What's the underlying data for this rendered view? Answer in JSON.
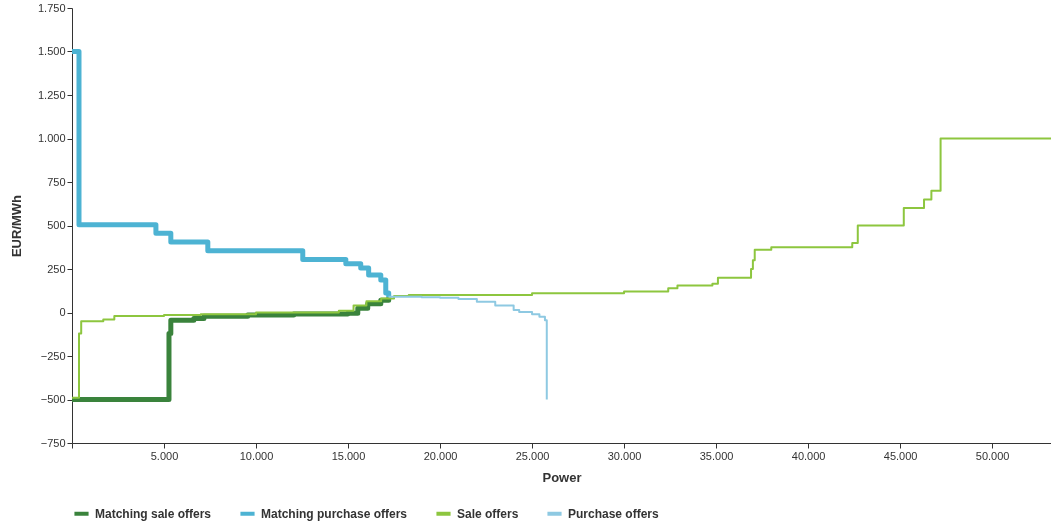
{
  "chart_data": {
    "type": "step",
    "xlabel": "Power",
    "ylabel": "EUR/MWh",
    "xlim": [
      0,
      53200
    ],
    "ylim": [
      -750,
      1750
    ],
    "xticks": [
      {
        "value": 0,
        "label": null
      },
      {
        "value": 5000,
        "label": "5.000"
      },
      {
        "value": 10000,
        "label": "10.000"
      },
      {
        "value": 15000,
        "label": "15.000"
      },
      {
        "value": 20000,
        "label": "20.000"
      },
      {
        "value": 25000,
        "label": "25.000"
      },
      {
        "value": 30000,
        "label": "30.000"
      },
      {
        "value": 35000,
        "label": "35.000"
      },
      {
        "value": 40000,
        "label": "40.000"
      },
      {
        "value": 45000,
        "label": "45.000"
      },
      {
        "value": 50000,
        "label": "50.000"
      }
    ],
    "yticks": [
      -750,
      -500,
      -250,
      0,
      250,
      500,
      750,
      {
        "value": 1000,
        "label": "1.000"
      },
      {
        "value": 1250,
        "label": "1.250"
      },
      {
        "value": 1500,
        "label": "1.500"
      },
      {
        "value": 1750,
        "label": "1.750"
      }
    ],
    "grid": false,
    "legend": "bottom left",
    "marker": "none",
    "line_style": "solid",
    "series": [
      {
        "name": "Matching sale offers",
        "color": "#3a833c",
        "x": [
          0,
          5270,
          5370,
          6620,
          7170,
          9550,
          12050,
          14980,
          15530,
          16070,
          16780,
          17210
        ],
        "values": [
          -500,
          -120,
          -44,
          -35,
          -22,
          -14,
          -8,
          -5,
          25,
          50,
          70,
          88
        ]
      },
      {
        "name": "Matching purchase offers",
        "color": "#4db3d3",
        "x": [
          0,
          380,
          4560,
          5370,
          7380,
          12540,
          14880,
          15690,
          16120,
          16780,
          17050,
          17210
        ],
        "values": [
          1500,
          505,
          455,
          405,
          355,
          305,
          280,
          256,
          215,
          187,
          112,
          89
        ]
      },
      {
        "name": "Sale offers",
        "color": "#8dc63f",
        "x": [
          0,
          380,
          500,
          1700,
          2300,
          5000,
          7000,
          10000,
          14500,
          15300,
          16000,
          16800,
          17500,
          18300,
          25000,
          30000,
          32400,
          32900,
          34800,
          35100,
          36900,
          37000,
          37100,
          38000,
          42400,
          42700,
          45200,
          46300,
          46700,
          47200,
          53200
        ],
        "values": [
          -490,
          -120,
          -50,
          -40,
          -20,
          -15,
          -10,
          0,
          10,
          40,
          65,
          80,
          95,
          100,
          110,
          120,
          140,
          155,
          165,
          200,
          250,
          300,
          360,
          375,
          400,
          500,
          600,
          650,
          700,
          1000,
          1000
        ]
      },
      {
        "name": "Purchase offers",
        "color": "#8ec9e2",
        "x": [
          17200,
          19000,
          20000,
          21000,
          22000,
          23000,
          24000,
          24300,
          25000,
          25400,
          25700,
          25800
        ],
        "values": [
          90,
          88,
          85,
          78,
          62,
          40,
          15,
          3,
          -10,
          -25,
          -45,
          -500
        ]
      }
    ]
  }
}
